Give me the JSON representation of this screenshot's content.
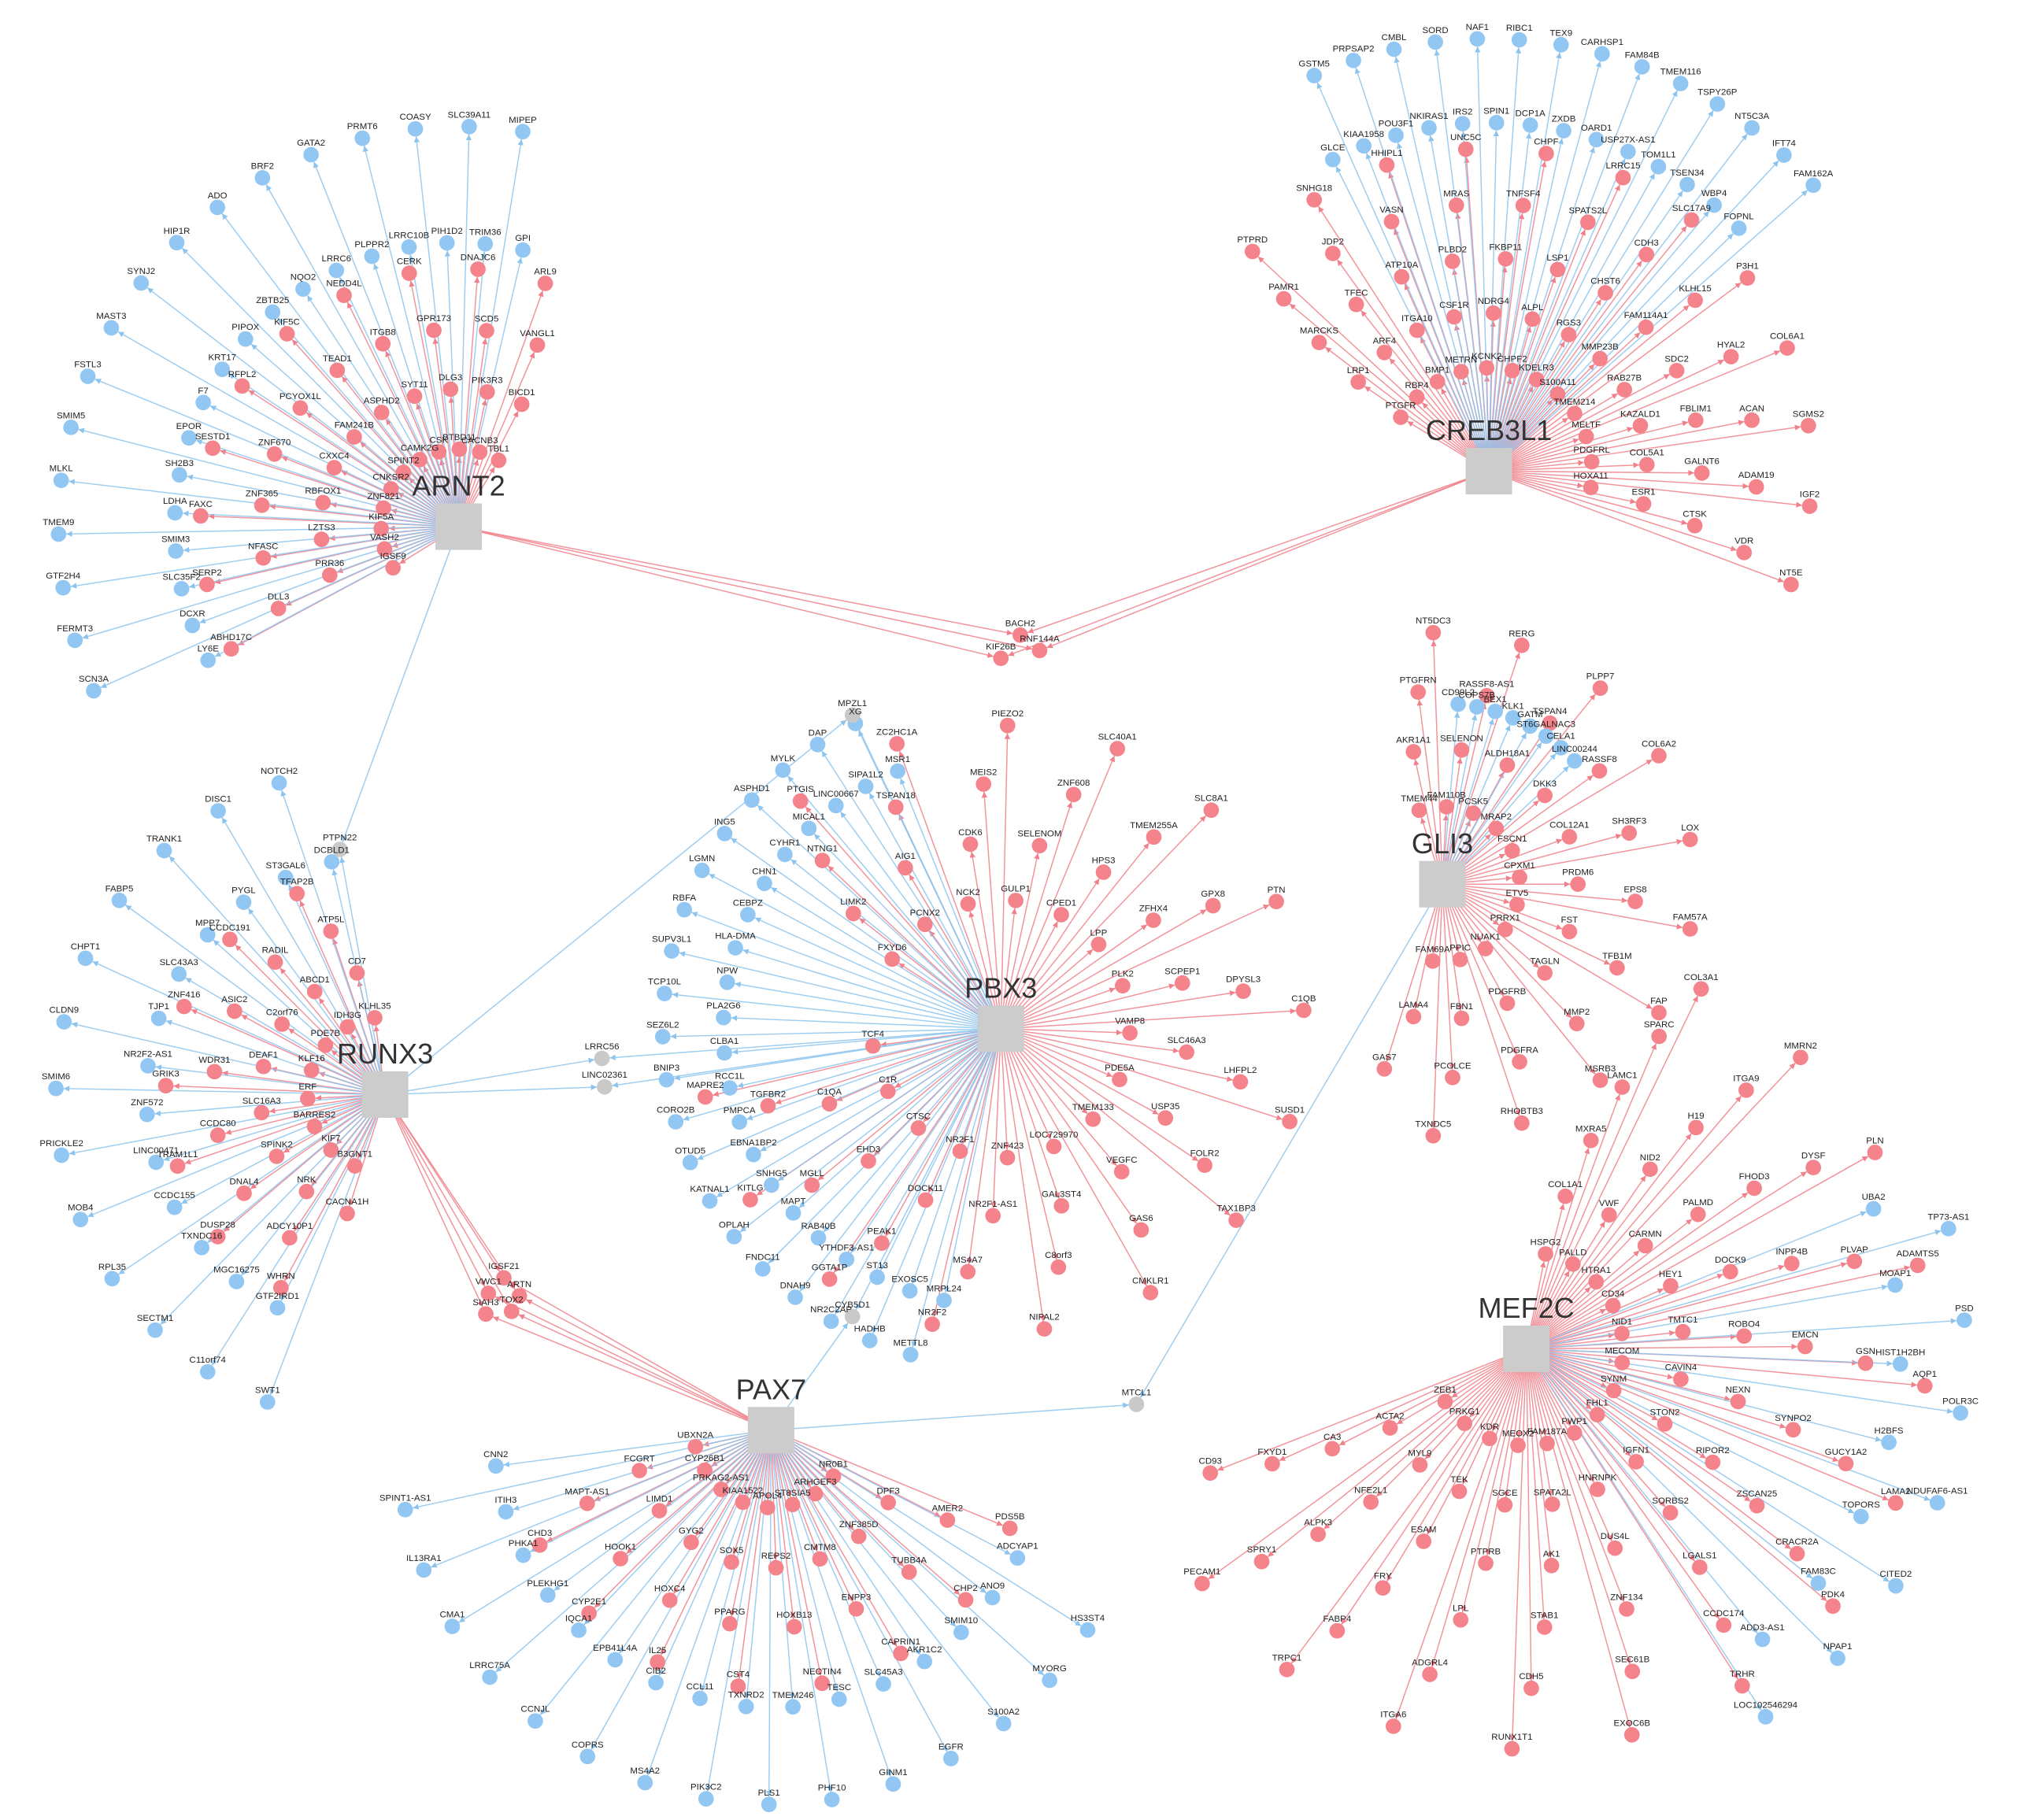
{
  "colors": {
    "red": "#f4838b",
    "blue": "#92c7f3",
    "shared": "#c9c9c9",
    "hub": "#cccccc",
    "red_edge": "#f0808a",
    "blue_edge": "#8cc4ee"
  },
  "hubs": [
    {
      "label": "ARNT2",
      "red": [
        "TBL1",
        "BICD1",
        "VANGL1",
        "ARL9",
        "CACNB3",
        "PIK3R3",
        "SCD5",
        "DNAJC6",
        "BTBD11",
        "DLG3",
        "GPR173",
        "CERK",
        "CSK",
        "SYT11",
        "ITGB8",
        "NEDD4L",
        "CAMK2G",
        "ASPHD2",
        "TEAD1",
        "KIF5C",
        "SPINT2",
        "FAM241B",
        "PCYOX1L",
        "RFPL2",
        "CNKSR2",
        "CXXC4",
        "ZNF670",
        "SESTD1",
        "ZNF821",
        "RBFOX1",
        "ZNF365",
        "FAXC",
        "KIF5A",
        "LZTS3",
        "NFASC",
        "SERP2",
        "VASH2",
        "PRR36",
        "DLL3",
        "ABHD17C",
        "IGSF9"
      ],
      "blue": [
        "GPI",
        "MIPEP",
        "TRIM36",
        "SLC39A11",
        "PIH1D2",
        "COASY",
        "LRRC10B",
        "PRMT6",
        "PLPPR2",
        "GATA2",
        "LRRC6",
        "BRF2",
        "NQO2",
        "ADO",
        "ZBTB25",
        "HIP1R",
        "PIPOX",
        "SYNJ2",
        "KRT17",
        "MAST3",
        "F7",
        "FSTL3",
        "EPOR",
        "SMIM5",
        "SH2B3",
        "MLKL",
        "LDHA",
        "TMEM9",
        "SMIM3",
        "GTF2H4",
        "SLC35F2",
        "FERMT3",
        "DCXR",
        "SCN3A",
        "LY6E"
      ]
    },
    {
      "label": "CREB3L1",
      "red": [
        "PTGFR",
        "LRP1",
        "MARCKS",
        "PAMR1",
        "PTPRD",
        "RBP4",
        "ARF4",
        "TFEC",
        "JDP2",
        "SNHG18",
        "BMP1",
        "ITGA10",
        "ATP10A",
        "VASN",
        "HHIPL1",
        "METRN",
        "CSF1R",
        "PLBD2",
        "MRAS",
        "UNC5C",
        "KCNK2",
        "NDRG4",
        "FKBP11",
        "TNFSF4",
        "CHPF",
        "CHPF2",
        "ALPL",
        "LSP1",
        "SPATS2L",
        "LRRC15",
        "KDELR3",
        "RGS3",
        "CHST6",
        "CDH3",
        "SLC17A9",
        "S100A11",
        "MMP23B",
        "FAM114A1",
        "KLHL15",
        "P3H1",
        "TMEM214",
        "RAB27B",
        "SDC2",
        "HYAL2",
        "COL6A1",
        "MELTF",
        "KAZALD1",
        "FBLIM1",
        "ACAN",
        "SGMS2",
        "PDGFRL",
        "COL5A1",
        "GALNT6",
        "ADAM19",
        "IGF2",
        "HOXA11",
        "ESR1",
        "CTSK",
        "VDR",
        "NT5E"
      ],
      "blue": [
        "GLCE",
        "GSTM5",
        "KIAA1958",
        "PRPSAP2",
        "POU3F1",
        "CMBL",
        "NKIRAS1",
        "SORD",
        "IRS2",
        "NAF1",
        "SPIN1",
        "RIBC1",
        "DCP1A",
        "TEX9",
        "ZXDB",
        "CARHSP1",
        "OARD1",
        "FAM84B",
        "USP27X-AS1",
        "TMEM116",
        "TOM1L1",
        "TSPY26P",
        "TSEN34",
        "NT5C3A",
        "WBP4",
        "IFT74",
        "FOPNL",
        "FAM162A"
      ]
    },
    {
      "label": "PBX3",
      "red": [
        "FXYD6",
        "LIMK2",
        "NTNG1",
        "PTGIS",
        "PCNX2",
        "AIG1",
        "TSPAN18",
        "ZC2HC1A",
        "NCK2",
        "CDK6",
        "MEIS2",
        "PIEZO2",
        "GULP1",
        "SELENOM",
        "ZNF608",
        "SLC40A1",
        "CPED1",
        "HPS3",
        "TMEM255A",
        "SLC8A1",
        "LPP",
        "ZFHX4",
        "GPX8",
        "PTN",
        "PLK2",
        "SCPEP1",
        "DPYSL3",
        "C1QB",
        "VAMP8",
        "SLC46A3",
        "LHFPL2",
        "SUSD1",
        "PDE5A",
        "USP35",
        "FOLR2",
        "TAX1BP3",
        "TMEM133",
        "VEGFC",
        "GAS6",
        "CMKLR1",
        "LOC729970",
        "GAL3ST4",
        "C8orf3",
        "NIPAL2",
        "ZNF423",
        "NR2F1-AS1",
        "MS4A7",
        "NR2F2",
        "NR2F1",
        "DOCK11",
        "PEAK1",
        "GGTA1P",
        "CTSC",
        "EHD3",
        "MGLL",
        "KITLG",
        "C1R",
        "C1QA",
        "TGFBR2",
        "MAPRE2",
        "TCF4"
      ],
      "blue": [
        "MRPL24",
        "METTL8",
        "EXOSC5",
        "HADHB",
        "ST13",
        "NR2C2AP",
        "YTHDF3-AS1",
        "DNAH9",
        "RAB40B",
        "FNDC11",
        "MAPT",
        "OPLAH",
        "SNHG5",
        "KATNAL1",
        "EBNA1BP2",
        "OTUD5",
        "PMPCA",
        "CORO2B",
        "RCC1L",
        "BNIP3",
        "CLBA1",
        "SEZ6L2",
        "PLA2G6",
        "TCP10L",
        "NPW",
        "SUPV3L1",
        "HLA-DMA",
        "RBFA",
        "CEBPZ",
        "LGMN",
        "CHN1",
        "ING5",
        "CYHR1",
        "ASPHD1",
        "MICAL1",
        "MYLK",
        "LINC00667",
        "DAP",
        "SIPA1L2",
        "XG",
        "MSR1"
      ]
    },
    {
      "label": "GLI3",
      "red": [
        "TMEM44",
        "AKR1A1",
        "PTGFRN",
        "NT5DC3",
        "FAM110B",
        "SELENON",
        "RASSF8-AS1",
        "RERG",
        "PCSK5",
        "ALDH18A1",
        "TSPAN4",
        "PLPP7",
        "MRAP2",
        "DKK3",
        "RASSF8",
        "COL6A2",
        "FSCN1",
        "COL12A1",
        "SH3RF3",
        "LOX",
        "CPXM1",
        "PRDM6",
        "EPS8",
        "FAM57A",
        "ETV5",
        "FST",
        "TFB1M",
        "FAP",
        "PRRX1",
        "TAGLN",
        "MMP2",
        "MSRB3",
        "NUAK1",
        "PDGFRB",
        "PDGFRA",
        "RHOBTB3",
        "PPIC",
        "FBN1",
        "PCOLCE",
        "TXNDC5",
        "FAM69A",
        "LAMA4",
        "GAS7"
      ],
      "blue": [
        "CD99L2",
        "COPS7B",
        "BEX1",
        "KLK1",
        "GATM",
        "ST6GALNAC3",
        "CELA1",
        "LINC00244"
      ]
    },
    {
      "label": "RUNX3",
      "red": [
        "KLHL35",
        "CD7",
        "ATP5L",
        "TFAP2B",
        "IDH3G",
        "ABCD1",
        "RADIL",
        "CCDC191",
        "PDE7B",
        "C2orf76",
        "ASIC2",
        "ZNF416",
        "KLF16",
        "DEAF1",
        "WDR31",
        "GRIK3",
        "ERF",
        "SLC16A3",
        "CCDC80",
        "TRAM1L1",
        "BARRES2",
        "SPINK2",
        "DNAL4",
        "DUSP28",
        "KIF7",
        "NRK",
        "ADCY10P1",
        "WHRN",
        "B3GNT1",
        "CACNA1H"
      ],
      "blue": [
        "DCBLD1",
        "NOTCH2",
        "ST3GAL6",
        "DISC1",
        "PYGL",
        "TRANK1",
        "MPP7",
        "FABP5",
        "SLC43A3",
        "CHPT1",
        "TJP1",
        "CLDN9",
        "NR2F2-AS1",
        "SMIM6",
        "ZNF572",
        "PRICKLE2",
        "LINC00471",
        "MOB4",
        "CCDC155",
        "RPL35",
        "TXNDC16",
        "SECTM1",
        "MGC16275",
        "C11orf74",
        "GTF2IRD1",
        "SWT1"
      ]
    },
    {
      "label": "MEF2C",
      "red": [
        "HSPG2",
        "COL1A1",
        "MXRA5",
        "LAMC1",
        "SPARC",
        "COL3A1",
        "PALLD",
        "VWF",
        "NID2",
        "H19",
        "ITGA9",
        "MMRN2",
        "HTRA1",
        "CARMN",
        "PALMD",
        "FHOD3",
        "DYSF",
        "PLN",
        "CD34",
        "HEY1",
        "DOCK9",
        "INPP4B",
        "PLVAP",
        "ADAMTS5",
        "NID1",
        "TMTC1",
        "ROBO4",
        "EMCN",
        "GSN",
        "AQP1",
        "MECOM",
        "CAVIN4",
        "NEXN",
        "SYNPO2",
        "GUCY1A2",
        "LAMA2",
        "SYNM",
        "STON2",
        "RIPOR2",
        "ZSCAN25",
        "CRACR2A",
        "PDK4",
        "FHL1",
        "IGFN1",
        "SORBS2",
        "LGALS1",
        "CCDC174",
        "TRHR",
        "PWP1",
        "HNRNPK",
        "DUS4L",
        "ZNF134",
        "SEC61B",
        "EXOC6B",
        "FAM187A",
        "SPATA2L",
        "AK1",
        "STAB1",
        "CDH5",
        "RUNX1T1",
        "MEOX2",
        "SGCE",
        "PTPRB",
        "LPL",
        "ADGRL4",
        "ITGA6",
        "KDR",
        "TEK",
        "ESAM",
        "FRY",
        "FABP4",
        "TRPC1",
        "PRKG1",
        "MYL9",
        "NFE2L1",
        "ALPK3",
        "SPRY1",
        "PECAM1",
        "ZEB1",
        "ACTA2",
        "CA3",
        "FXYD1",
        "CD93"
      ],
      "blue": [
        "UBA2",
        "TP73-AS1",
        "MOAP1",
        "PSD",
        "HIST1H2BH",
        "POLR3C",
        "H2BFS",
        "NDUFAF6-AS1",
        "TOPORS",
        "CITED2",
        "FAM83C",
        "NPAP1",
        "ADD3-AS1",
        "LOC102546294"
      ]
    },
    {
      "label": "PAX7",
      "red": [
        "UBXN2A",
        "FCGRT",
        "MAPT-AS1",
        "CHD3",
        "CYP26B1",
        "LIMD1",
        "HOOK1",
        "CYP2E1",
        "PRKAG2-AS1",
        "GYG2",
        "HOXC4",
        "IL25",
        "KIAA1522",
        "SOX5",
        "PPARG",
        "CST4",
        "APOL4",
        "REPS2",
        "HOXB13",
        "NECTIN4",
        "ST8SIA5",
        "CMTM8",
        "ENPP3",
        "CAPRIN1",
        "ARHGEF3",
        "ZNF385D",
        "TUBB4A",
        "CHP2",
        "NR0B1",
        "DPF3",
        "AMER2",
        "PDS5B"
      ],
      "blue": [
        "CNN2",
        "SPINT1-AS1",
        "ITIH3",
        "IL13RA1",
        "PHKA1",
        "CMA1",
        "PLEKHG1",
        "LRRC75A",
        "IQCA1",
        "CCNJL",
        "EPB41L4A",
        "COPRS",
        "CIB2",
        "MS4A2",
        "CCL11",
        "PIK3C2",
        "TXNRD2",
        "PLS1",
        "TMEM246",
        "PHF10",
        "TESC",
        "GINM1",
        "SLC45A3",
        "EGFR",
        "AKR1C2",
        "S100A2",
        "SMIM10",
        "MYORG",
        "ANO9",
        "HS3ST4",
        "ADCYAP1"
      ]
    }
  ],
  "shared": [
    {
      "label": "BACH2",
      "color": "red"
    },
    {
      "label": "RNF144A",
      "color": "red"
    },
    {
      "label": "KIF26B",
      "color": "red"
    },
    {
      "label": "PTPN22",
      "color": "shared"
    },
    {
      "label": "MPZL1",
      "color": "shared"
    },
    {
      "label": "LRRC56",
      "color": "shared"
    },
    {
      "label": "LINC02361",
      "color": "shared"
    },
    {
      "label": "CYB5D1",
      "color": "shared"
    },
    {
      "label": "MTCL1",
      "color": "shared"
    },
    {
      "label": "IGSF21",
      "color": "red"
    },
    {
      "label": "VWC1",
      "color": "red"
    },
    {
      "label": "ARTN",
      "color": "red"
    },
    {
      "label": "SIAH3",
      "color": "red"
    },
    {
      "label": "TOX2",
      "color": "red"
    }
  ]
}
